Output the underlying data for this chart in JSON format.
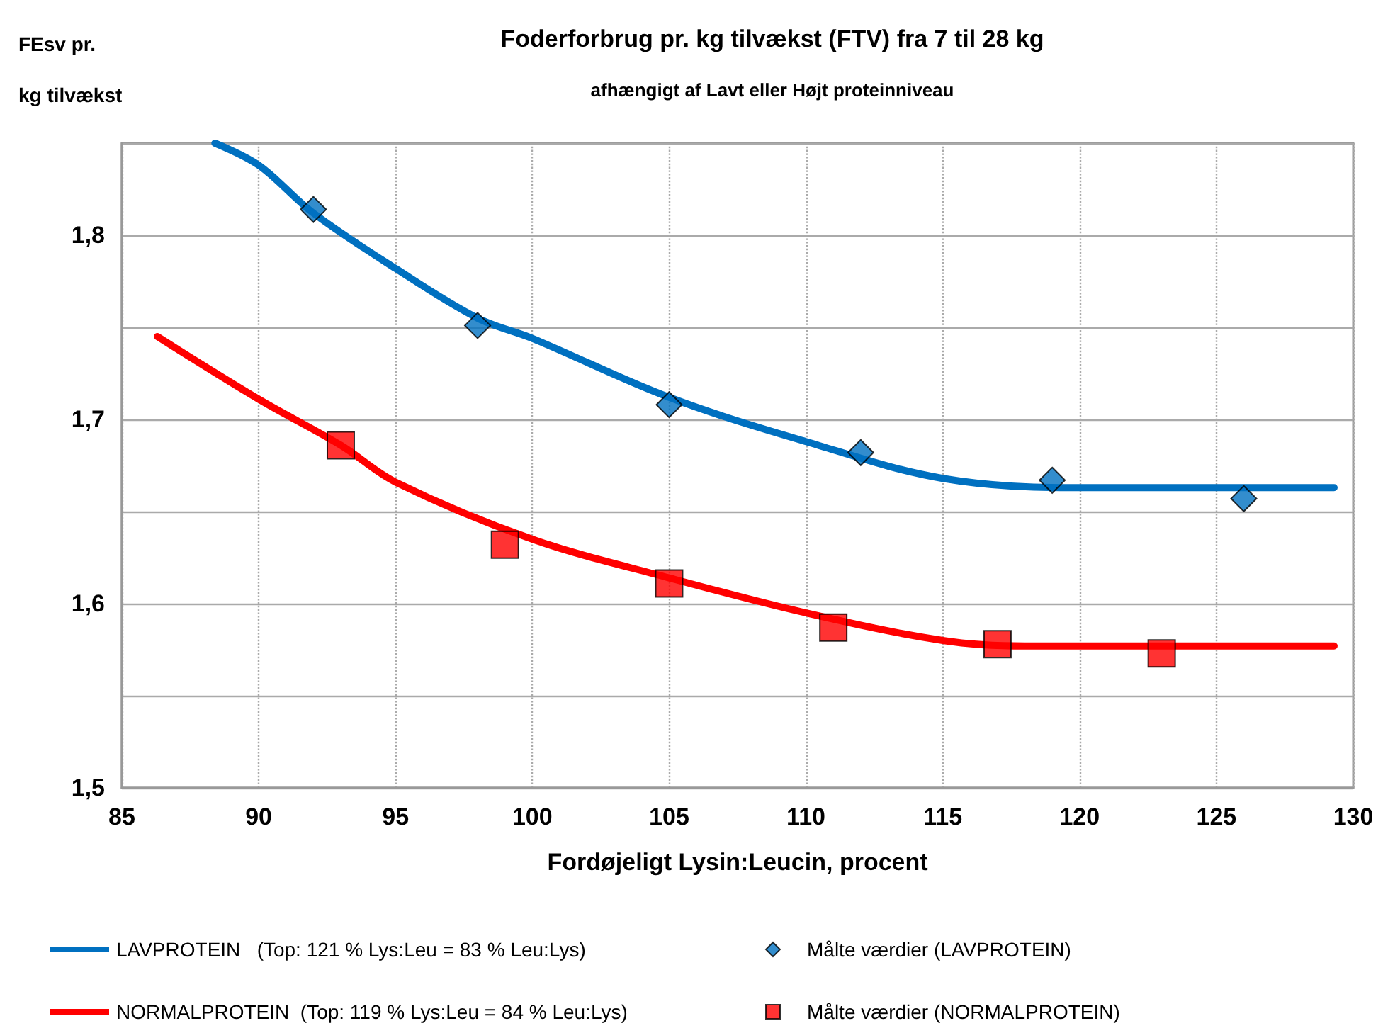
{
  "chart_data": {
    "type": "line",
    "title": "Foderforbrug pr. kg tilvækst (FTV) fra 7 til 28 kg",
    "subtitle": "afhængigt af Lavt eller Højt proteinniveau",
    "xlabel": "Fordøjeligt Lysin:Leucin, procent",
    "ylabel": "FEsv pr.\nkg tilvækst",
    "xlim": [
      85,
      130
    ],
    "xticks": [
      85,
      90,
      95,
      100,
      105,
      110,
      115,
      120,
      125,
      130
    ],
    "ylim": [
      1.5,
      1.85
    ],
    "yticks": [
      {
        "value": 1.5,
        "label": "1,5"
      },
      {
        "value": 1.55,
        "label": null
      },
      {
        "value": 1.6,
        "label": "1,6"
      },
      {
        "value": 1.65,
        "label": null
      },
      {
        "value": 1.7,
        "label": "1,7"
      },
      {
        "value": 1.75,
        "label": null
      },
      {
        "value": 1.8,
        "label": "1,8"
      },
      {
        "value": 1.85,
        "label": null
      }
    ],
    "grid": true,
    "legend": "bottom",
    "series": [
      {
        "name": "LAVPROTEIN   (Top: 121 % Lys:Leu = 83 % Leu:Lys)",
        "color": "#0070c0",
        "marker": "none",
        "line_style": "solid",
        "x": [
          88.4,
          90,
          92,
          95,
          98,
          100,
          105,
          110,
          115,
          120,
          125,
          129.3
        ],
        "values": [
          1.85,
          1.838,
          1.812,
          1.782,
          1.755,
          1.744,
          1.712,
          1.688,
          1.668,
          1.663,
          1.663,
          1.663
        ]
      },
      {
        "name": "NORMALPROTEIN  (Top: 119 % Lys:Leu = 84 % Leu:Lys)",
        "color": "#ff0000",
        "marker": "none",
        "line_style": "solid",
        "x": [
          86.3,
          90,
          93,
          95,
          100,
          105,
          110,
          115,
          118,
          125,
          129.3
        ],
        "values": [
          1.745,
          1.711,
          1.686,
          1.666,
          1.635,
          1.614,
          1.595,
          1.58,
          1.577,
          1.577,
          1.577
        ]
      },
      {
        "name": "Målte værdier (LAVPROTEIN)",
        "type": "scatter",
        "color": "#0070c0",
        "marker": "diamond",
        "x": [
          92,
          98,
          105,
          112,
          119,
          126
        ],
        "values": [
          1.814,
          1.751,
          1.708,
          1.682,
          1.667,
          1.657
        ]
      },
      {
        "name": "Målte værdier (NORMALPROTEIN)",
        "type": "scatter",
        "color": "#ff0000",
        "marker": "square",
        "x": [
          93,
          99,
          105,
          111,
          117,
          123
        ],
        "values": [
          1.686,
          1.632,
          1.611,
          1.587,
          1.578,
          1.573
        ]
      }
    ]
  }
}
